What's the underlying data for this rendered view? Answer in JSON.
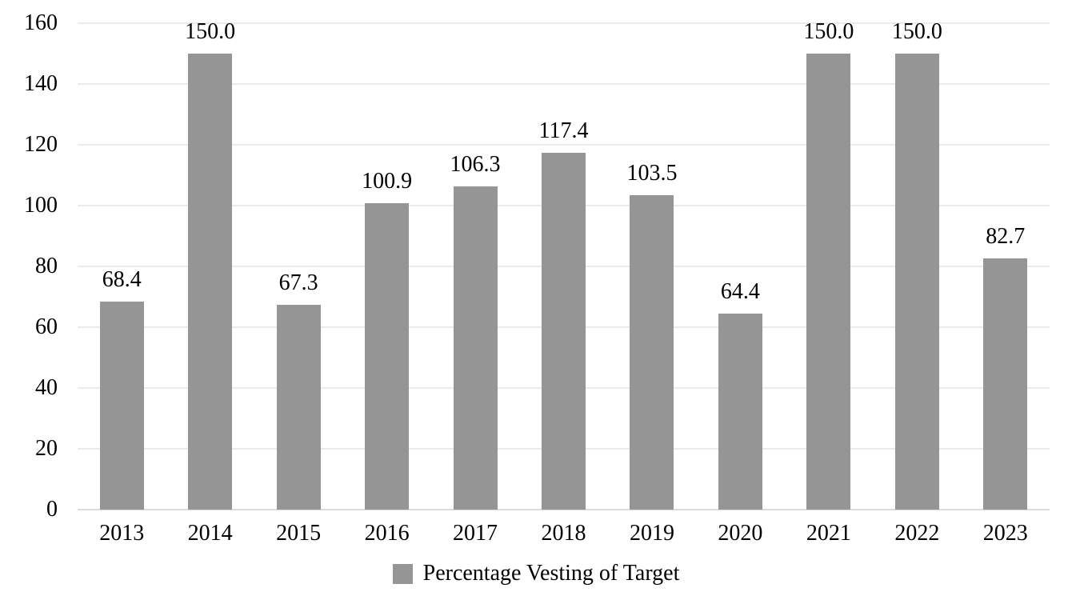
{
  "chart_data": {
    "type": "bar",
    "title": "",
    "xlabel": "",
    "ylabel": "",
    "categories": [
      "2013",
      "2014",
      "2015",
      "2016",
      "2017",
      "2018",
      "2019",
      "2020",
      "2021",
      "2022",
      "2023"
    ],
    "values": [
      68.4,
      150.0,
      67.3,
      100.9,
      106.3,
      117.4,
      103.5,
      64.4,
      150.0,
      150.0,
      82.7
    ],
    "value_labels": [
      "68.4",
      "150.0",
      "67.3",
      "100.9",
      "106.3",
      "117.4",
      "103.5",
      "64.4",
      "150.0",
      "150.0",
      "82.7"
    ],
    "ylim": [
      0,
      160
    ],
    "yticks": [
      0,
      20,
      40,
      60,
      80,
      100,
      120,
      140,
      160
    ],
    "grid": "horizontal",
    "legend_position": "bottom",
    "legend": [
      "Percentage Vesting of Target"
    ],
    "colors": {
      "bar": "#959595",
      "gridline": "#ebebeb",
      "axis_line": "#dcdcdc",
      "text": "#000000",
      "background": "#ffffff"
    }
  }
}
